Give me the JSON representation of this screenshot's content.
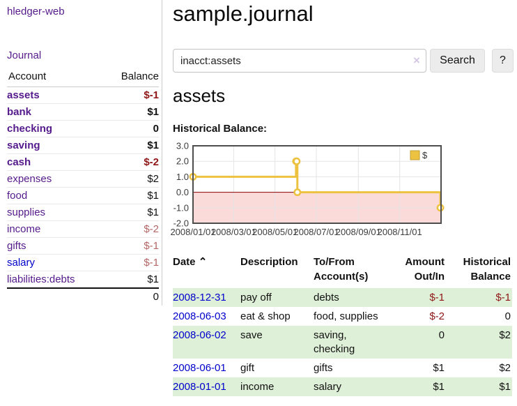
{
  "colors": {
    "purple": "#551a8b",
    "blue": "#0000cc",
    "neg_strong": "#8f1616",
    "neg_soft": "#b56565",
    "stripe": "#dff0d8",
    "gold": "#edc240"
  },
  "app": {
    "brand": "hledger-web"
  },
  "sidebar": {
    "nav_journal": "Journal",
    "col_account": "Account",
    "col_balance": "Balance",
    "accounts": [
      {
        "name": "assets",
        "depth": 1,
        "bold": true,
        "tone": "neg-strong",
        "link": "purple",
        "balance": "$-1"
      },
      {
        "name": "bank",
        "depth": 2,
        "bold": true,
        "tone": "",
        "link": "purple",
        "balance": "$1"
      },
      {
        "name": "checking",
        "depth": 3,
        "bold": true,
        "tone": "",
        "link": "purple",
        "balance": "0"
      },
      {
        "name": "saving",
        "depth": 3,
        "bold": true,
        "tone": "",
        "link": "purple",
        "balance": "$1"
      },
      {
        "name": "cash",
        "depth": 2,
        "bold": true,
        "tone": "neg-strong",
        "link": "purple",
        "balance": "$-2"
      },
      {
        "name": "expenses",
        "depth": 1,
        "bold": false,
        "tone": "",
        "link": "purple",
        "balance": "$2"
      },
      {
        "name": "food",
        "depth": 2,
        "bold": false,
        "tone": "",
        "link": "purple",
        "balance": "$1"
      },
      {
        "name": "supplies",
        "depth": 2,
        "bold": false,
        "tone": "",
        "link": "purple",
        "balance": "$1"
      },
      {
        "name": "income",
        "depth": 1,
        "bold": false,
        "tone": "neg-soft",
        "link": "purple",
        "balance": "$-2"
      },
      {
        "name": "gifts",
        "depth": 2,
        "bold": false,
        "tone": "neg-soft",
        "link": "purple",
        "balance": "$-1"
      },
      {
        "name": "salary",
        "depth": 2,
        "bold": false,
        "tone": "neg-soft",
        "link": "blue",
        "balance": "$-1"
      },
      {
        "name": "liabilities:debts",
        "depth": 1,
        "bold": false,
        "tone": "",
        "link": "purple",
        "balance": "$1"
      }
    ],
    "total": "0"
  },
  "header": {
    "title": "sample.journal"
  },
  "search": {
    "value": "inacct:assets",
    "clear_icon": "×",
    "button_label": "Search",
    "help_label": "?"
  },
  "account_page": {
    "heading": "assets",
    "chart_label": "Historical Balance:"
  },
  "chart_data": {
    "type": "line",
    "step": true,
    "title": "Historical Balance",
    "series": [
      {
        "name": "$",
        "color": "#edc240",
        "points": [
          [
            "2008-01-01",
            1
          ],
          [
            "2008-06-01",
            2
          ],
          [
            "2008-06-02",
            2
          ],
          [
            "2008-06-03",
            0
          ],
          [
            "2008-12-31",
            -1
          ]
        ]
      }
    ],
    "ylim": [
      -2.0,
      3.0
    ],
    "yticks": [
      "3.0",
      "2.0",
      "1.0",
      "0.0",
      "-1.0",
      "-2.0"
    ],
    "xticks": [
      "2008/01/01",
      "2008/03/01",
      "2008/05/01",
      "2008/07/01",
      "2008/09/01",
      "2008/11/01"
    ],
    "xrange": [
      "2008-01-01",
      "2009-01-01"
    ],
    "grid": true,
    "negative_region_color": "#fbdada",
    "zero_line_color": "#8b0000",
    "legend": {
      "label": "$",
      "position": "top-right"
    }
  },
  "register": {
    "headers": {
      "date": "Date",
      "sort_icon": "⌃",
      "description": "Description",
      "tofrom_line1": "To/From",
      "tofrom_line2": "Account(s)",
      "amount_line1": "Amount",
      "amount_line2": "Out/In",
      "balance_line1": "Historical",
      "balance_line2": "Balance"
    },
    "rows": [
      {
        "date": "2008-12-31",
        "description": "pay off",
        "accounts": "debts",
        "amount": "$-1",
        "amount_neg": true,
        "balance": "$-1",
        "balance_neg": true
      },
      {
        "date": "2008-06-03",
        "description": "eat & shop",
        "accounts": "food, supplies",
        "amount": "$-2",
        "amount_neg": true,
        "balance": "0",
        "balance_neg": false
      },
      {
        "date": "2008-06-02",
        "description": "save",
        "accounts": "saving, checking",
        "amount": "0",
        "amount_neg": false,
        "balance": "$2",
        "balance_neg": false
      },
      {
        "date": "2008-06-01",
        "description": "gift",
        "accounts": "gifts",
        "amount": "$1",
        "amount_neg": false,
        "balance": "$2",
        "balance_neg": false
      },
      {
        "date": "2008-01-01",
        "description": "income",
        "accounts": "salary",
        "amount": "$1",
        "amount_neg": false,
        "balance": "$1",
        "balance_neg": false
      }
    ]
  }
}
